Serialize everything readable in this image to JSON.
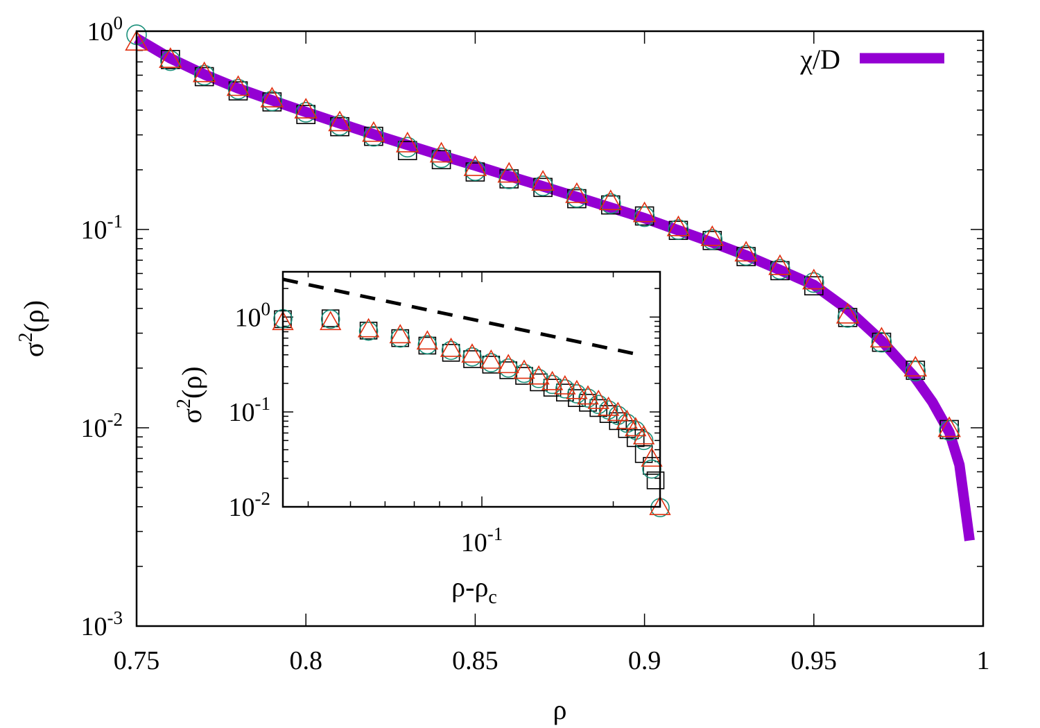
{
  "chart_data": [
    {
      "type": "line",
      "name": "main",
      "xlabel": "ρ",
      "ylabel_base": "σ",
      "ylabel_sup": "2",
      "ylabel_tail": "(ρ)",
      "xlim": [
        0.75,
        1.0
      ],
      "ylim": [
        0.001,
        1.0
      ],
      "yscale": "log",
      "x_ticks": [
        0.75,
        0.8,
        0.85,
        0.9,
        0.95,
        1.0
      ],
      "x_tick_labels": [
        "0.75",
        "0.8",
        "0.85",
        "0.9",
        "0.95",
        "1"
      ],
      "y_ticks": [
        1,
        0.1,
        0.01,
        0.001
      ],
      "y_tick_labels": [
        {
          "base": "10",
          "exp": "0"
        },
        {
          "base": "10",
          "exp": "-1"
        },
        {
          "base": "10",
          "exp": "-2"
        },
        {
          "base": "10",
          "exp": "-3"
        }
      ],
      "legend_position": "top-right",
      "legend": [
        {
          "label": "χ/D",
          "color": "#9400d3"
        }
      ],
      "series": [
        {
          "name": "χ/D",
          "kind": "curve",
          "color": "#9400d3",
          "x": [
            0.75,
            0.76,
            0.77,
            0.78,
            0.79,
            0.8,
            0.81,
            0.82,
            0.83,
            0.84,
            0.85,
            0.86,
            0.87,
            0.88,
            0.89,
            0.9,
            0.91,
            0.92,
            0.93,
            0.94,
            0.95,
            0.96,
            0.97,
            0.98,
            0.985,
            0.99,
            0.993,
            0.996
          ],
          "y": [
            0.92,
            0.73,
            0.605,
            0.515,
            0.448,
            0.391,
            0.343,
            0.302,
            0.267,
            0.236,
            0.21,
            0.186,
            0.165,
            0.146,
            0.129,
            0.114,
            0.099,
            0.086,
            0.074,
            0.0625,
            0.0525,
            0.0395,
            0.0275,
            0.0178,
            0.0135,
            0.0095,
            0.0065,
            0.0027
          ]
        },
        {
          "name": "",
          "kind": "markers",
          "marker": "square",
          "color": "#000000",
          "x": [
            0.76,
            0.77,
            0.78,
            0.79,
            0.8,
            0.81,
            0.82,
            0.83,
            0.84,
            0.85,
            0.86,
            0.87,
            0.88,
            0.89,
            0.9,
            0.91,
            0.92,
            0.93,
            0.94,
            0.95,
            0.96,
            0.97,
            0.98,
            0.99
          ],
          "y": [
            0.72,
            0.59,
            0.5,
            0.44,
            0.38,
            0.33,
            0.295,
            0.25,
            0.225,
            0.195,
            0.18,
            0.163,
            0.143,
            0.133,
            0.117,
            0.099,
            0.088,
            0.073,
            0.062,
            0.052,
            0.036,
            0.027,
            0.0195,
            0.0098
          ]
        },
        {
          "name": "",
          "kind": "markers",
          "marker": "circle",
          "color": "#1a8f7a",
          "x": [
            0.75,
            0.76,
            0.77,
            0.78,
            0.79,
            0.8,
            0.81,
            0.82,
            0.83,
            0.84,
            0.85,
            0.86,
            0.87,
            0.88,
            0.89,
            0.9,
            0.91,
            0.92,
            0.93,
            0.94,
            0.95,
            0.96,
            0.97,
            0.98,
            0.99
          ],
          "y": [
            0.96,
            0.71,
            0.6,
            0.51,
            0.445,
            0.39,
            0.335,
            0.295,
            0.26,
            0.23,
            0.198,
            0.18,
            0.166,
            0.145,
            0.135,
            0.116,
            0.1,
            0.089,
            0.074,
            0.063,
            0.054,
            0.036,
            0.027,
            0.0193,
            0.0097
          ]
        },
        {
          "name": "",
          "kind": "markers",
          "marker": "triangle",
          "color": "#e03010",
          "x": [
            0.75,
            0.76,
            0.77,
            0.78,
            0.79,
            0.8,
            0.81,
            0.82,
            0.83,
            0.84,
            0.85,
            0.86,
            0.87,
            0.88,
            0.89,
            0.9,
            0.91,
            0.92,
            0.93,
            0.94,
            0.95,
            0.96,
            0.97,
            0.98,
            0.99
          ],
          "y": [
            0.88,
            0.72,
            0.61,
            0.52,
            0.455,
            0.4,
            0.345,
            0.305,
            0.27,
            0.24,
            0.205,
            0.19,
            0.173,
            0.15,
            0.138,
            0.12,
            0.102,
            0.091,
            0.076,
            0.065,
            0.055,
            0.037,
            0.028,
            0.02,
            0.0099
          ]
        }
      ]
    },
    {
      "type": "line",
      "name": "inset",
      "xlabel_base": "ρ-ρ",
      "xlabel_sub": "c",
      "ylabel_base": "σ",
      "ylabel_sup": "2",
      "ylabel_tail": "(ρ)",
      "xscale": "log",
      "yscale": "log",
      "xlim": [
        0.035,
        0.256
      ],
      "ylim": [
        0.01,
        3.0
      ],
      "x_ticks": [
        0.1
      ],
      "x_tick_labels": [
        {
          "base": "10",
          "exp": "-1"
        }
      ],
      "y_ticks": [
        1,
        0.1,
        0.01
      ],
      "y_tick_labels": [
        {
          "base": "10",
          "exp": "0"
        },
        {
          "base": "10",
          "exp": "-1"
        },
        {
          "base": "10",
          "exp": "-2"
        }
      ],
      "series": [
        {
          "name": "",
          "kind": "dashed-line",
          "color": "#000000",
          "x": [
            0.035,
            0.23
          ],
          "y": [
            2.5,
            0.4
          ]
        },
        {
          "name": "",
          "kind": "markers",
          "marker": "square",
          "color": "#000000",
          "x": [
            0.035,
            0.045,
            0.055,
            0.065,
            0.075,
            0.085,
            0.095,
            0.105,
            0.115,
            0.125,
            0.135,
            0.145,
            0.155,
            0.165,
            0.175,
            0.185,
            0.195,
            0.205,
            0.215,
            0.225,
            0.235,
            0.245,
            0.25
          ],
          "y": [
            0.95,
            0.97,
            0.72,
            0.6,
            0.5,
            0.42,
            0.36,
            0.315,
            0.275,
            0.24,
            0.205,
            0.18,
            0.16,
            0.14,
            0.125,
            0.11,
            0.095,
            0.08,
            0.066,
            0.053,
            0.036,
            0.027,
            0.019
          ]
        },
        {
          "name": "",
          "kind": "markers",
          "marker": "circle",
          "color": "#1a8f7a",
          "x": [
            0.035,
            0.045,
            0.055,
            0.065,
            0.075,
            0.085,
            0.095,
            0.105,
            0.115,
            0.125,
            0.135,
            0.145,
            0.155,
            0.165,
            0.175,
            0.185,
            0.195,
            0.205,
            0.215,
            0.225,
            0.235,
            0.245,
            0.256
          ],
          "y": [
            0.96,
            0.95,
            0.71,
            0.6,
            0.51,
            0.445,
            0.38,
            0.33,
            0.29,
            0.255,
            0.225,
            0.195,
            0.175,
            0.155,
            0.14,
            0.12,
            0.105,
            0.092,
            0.076,
            0.064,
            0.05,
            0.025,
            0.0098
          ]
        },
        {
          "name": "",
          "kind": "markers",
          "marker": "triangle",
          "color": "#e03010",
          "x": [
            0.035,
            0.045,
            0.055,
            0.065,
            0.075,
            0.085,
            0.095,
            0.105,
            0.115,
            0.125,
            0.135,
            0.145,
            0.155,
            0.165,
            0.175,
            0.185,
            0.195,
            0.205,
            0.215,
            0.225,
            0.235,
            0.245,
            0.256
          ],
          "y": [
            0.88,
            0.88,
            0.74,
            0.64,
            0.55,
            0.46,
            0.4,
            0.345,
            0.31,
            0.27,
            0.235,
            0.205,
            0.185,
            0.165,
            0.145,
            0.13,
            0.11,
            0.097,
            0.08,
            0.067,
            0.055,
            0.032,
            0.0099
          ]
        }
      ]
    }
  ]
}
